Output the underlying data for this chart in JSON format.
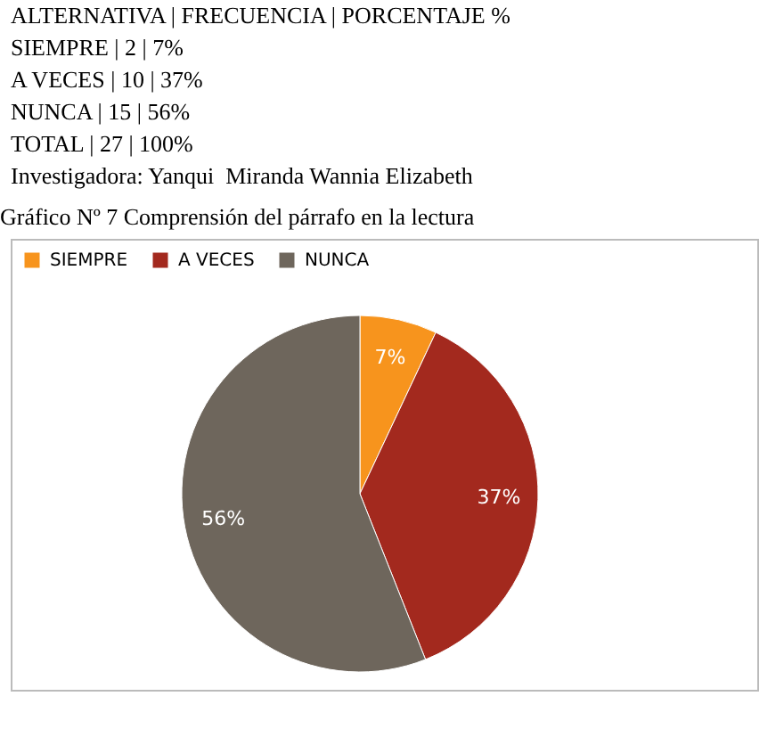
{
  "chart_data": {
    "type": "pie",
    "title": "Gráfico Nº 7 Comprensión del párrafo en la lectura",
    "categories": [
      "SIEMPRE",
      "A VECES",
      "NUNCA"
    ],
    "values": [
      7,
      37,
      56
    ],
    "colors": [
      "#f7941d",
      "#a3291e",
      "#6e665c"
    ],
    "value_labels": [
      "7%",
      "37%",
      "56%"
    ],
    "legend": "top",
    "annotations": [
      "ALTERNATIVA | FRECUENCIA | PORCENTAJE %",
      "SIEMPRE | 2 | 7%",
      "A VECES | 10 | 37%",
      "NUNCA | 15 | 56%",
      "TOTAL | 27 | 100%",
      "Investigadora: Yanqui  Miranda Wannia Elizabeth"
    ]
  }
}
